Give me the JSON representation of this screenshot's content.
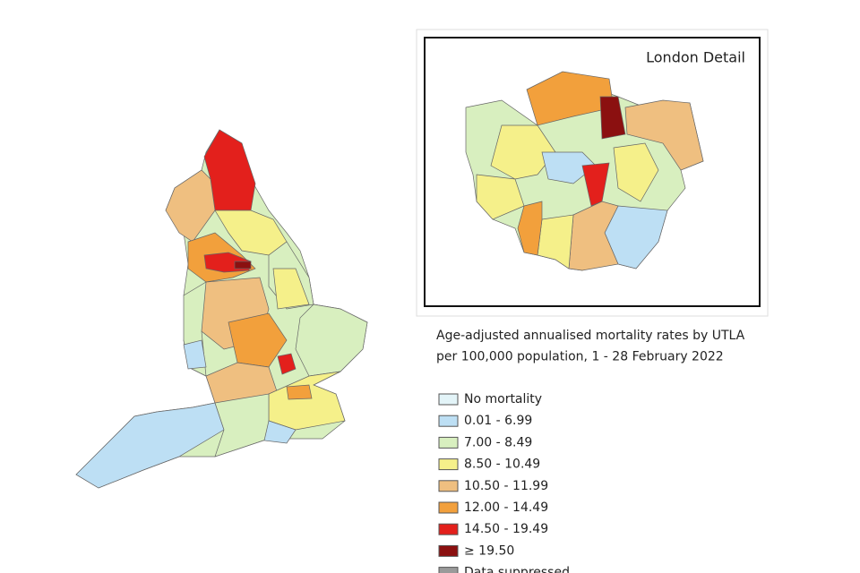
{
  "inset": {
    "title": "London Detail"
  },
  "legend": {
    "title_lines": [
      "Age-adjusted annualised mortality rates by UTLA",
      "per 100,000 population, 1 - 28 February 2022"
    ],
    "items": [
      {
        "label": "No mortality",
        "color": "#e3f4f8"
      },
      {
        "label": "0.01 - 6.99",
        "color": "#bddff4"
      },
      {
        "label": "7.00 - 8.49",
        "color": "#d8efbf"
      },
      {
        "label": "8.50 - 10.49",
        "color": "#f5f08a"
      },
      {
        "label": "10.50 - 11.99",
        "color": "#efbf80"
      },
      {
        "label": "12.00 - 14.49",
        "color": "#f2a03c"
      },
      {
        "label": "14.50 - 19.49",
        "color": "#e3201c"
      },
      {
        "label": "≥ 19.50",
        "color": "#8b1010"
      },
      {
        "label": "Data suppressed",
        "color": "#9a9a9a"
      }
    ]
  }
}
